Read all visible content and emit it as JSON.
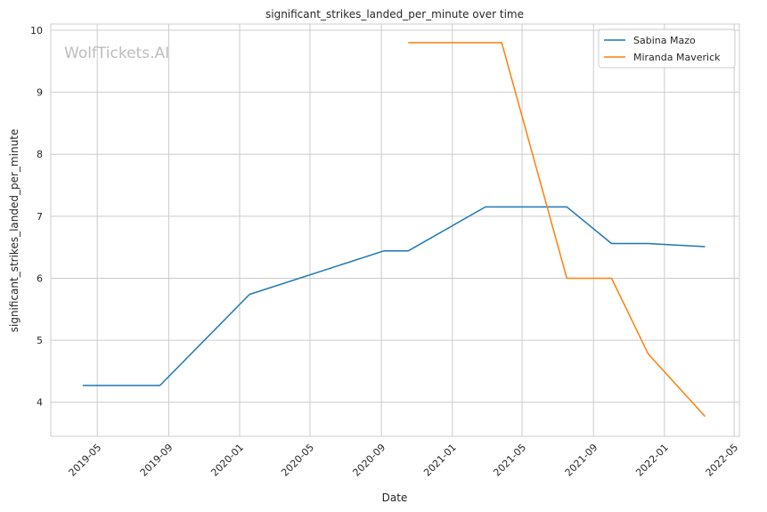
{
  "chart_data": {
    "type": "line",
    "title": "significant_strikes_landed_per_minute over time",
    "xlabel": "Date",
    "ylabel": "significant_strikes_landed_per_minute",
    "watermark": "WolfTickets.AI",
    "grid": true,
    "legend_position": "top-right",
    "x_axis_type": "date",
    "xlim": [
      "2019-02-10",
      "2022-05-10"
    ],
    "ylim": [
      3.45,
      10.1
    ],
    "x_ticks": [
      "2019-05",
      "2019-09",
      "2020-01",
      "2020-05",
      "2020-09",
      "2021-01",
      "2021-05",
      "2021-09",
      "2022-01",
      "2022-05"
    ],
    "y_ticks": [
      4,
      5,
      6,
      7,
      8,
      9,
      10
    ],
    "series": [
      {
        "name": "Sabina Mazo",
        "color": "#1f77b4",
        "points": [
          {
            "x": "2019-04-06",
            "y": 4.27
          },
          {
            "x": "2019-08-17",
            "y": 4.27
          },
          {
            "x": "2020-01-18",
            "y": 5.74
          },
          {
            "x": "2020-09-05",
            "y": 6.44
          },
          {
            "x": "2020-10-17",
            "y": 6.44
          },
          {
            "x": "2021-02-27",
            "y": 7.15
          },
          {
            "x": "2021-07-17",
            "y": 7.15
          },
          {
            "x": "2021-10-02",
            "y": 6.56
          },
          {
            "x": "2021-12-04",
            "y": 6.56
          },
          {
            "x": "2022-03-12",
            "y": 6.51
          }
        ]
      },
      {
        "name": "Miranda Maverick",
        "color": "#ff7f0e",
        "points": [
          {
            "x": "2020-10-17",
            "y": 9.8
          },
          {
            "x": "2021-03-27",
            "y": 9.8
          },
          {
            "x": "2021-07-17",
            "y": 6.0
          },
          {
            "x": "2021-10-02",
            "y": 6.0
          },
          {
            "x": "2021-12-04",
            "y": 4.78
          },
          {
            "x": "2022-03-12",
            "y": 3.77
          }
        ]
      }
    ]
  }
}
